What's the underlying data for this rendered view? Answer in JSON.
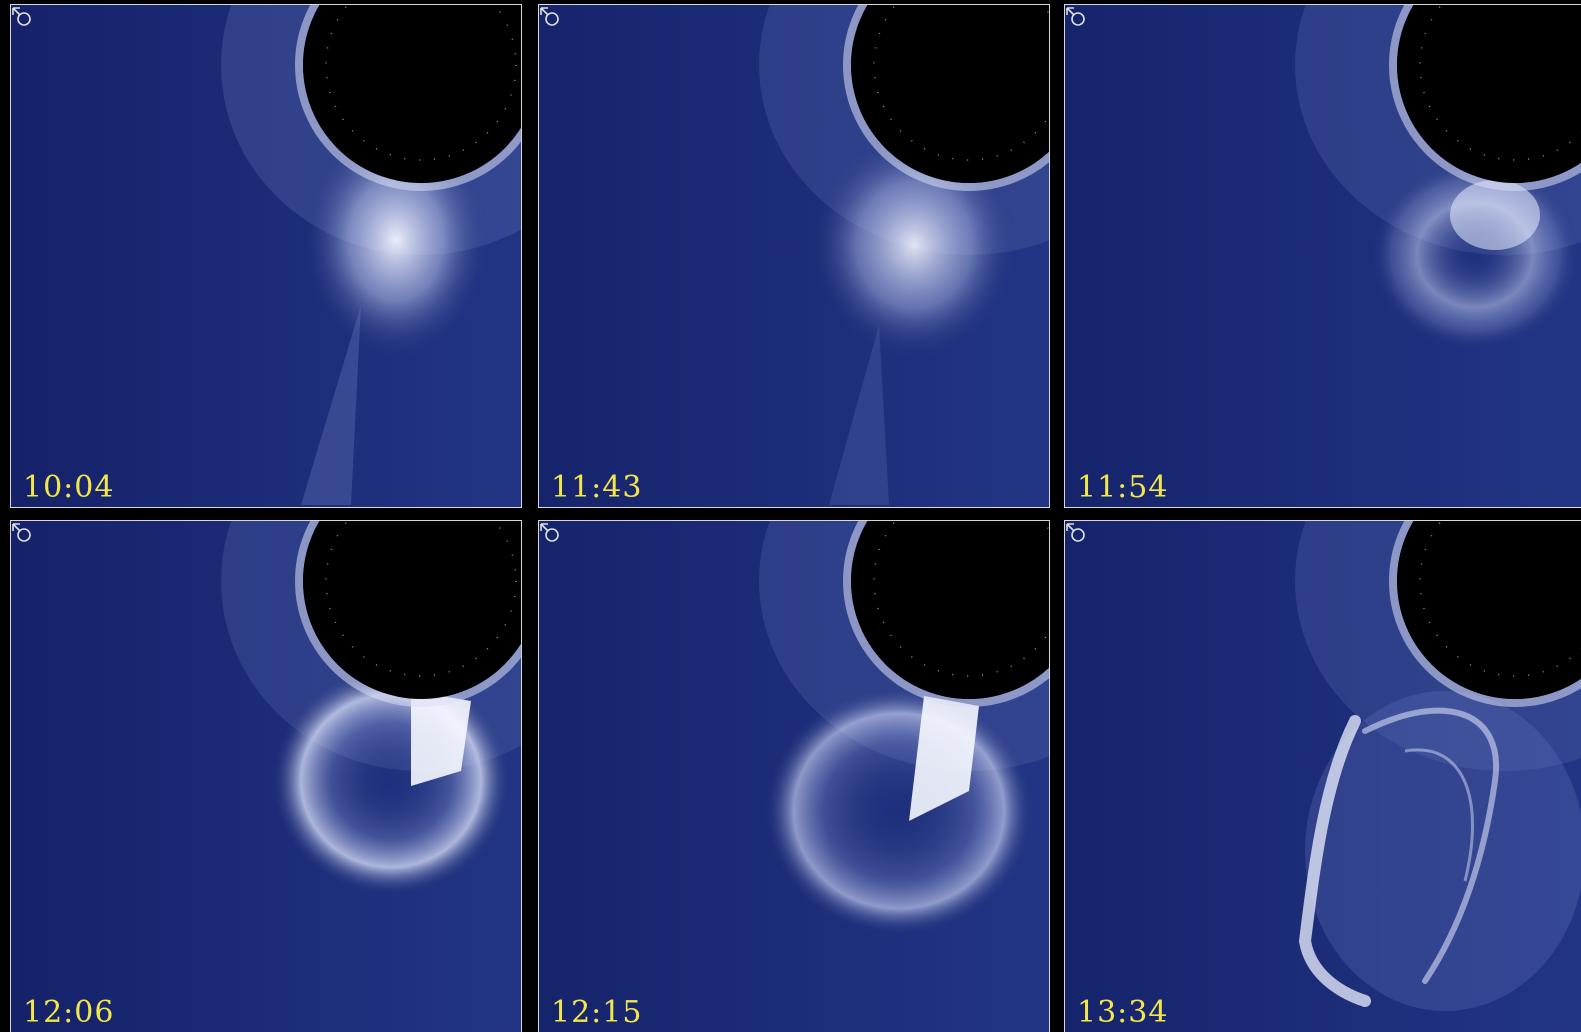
{
  "colors": {
    "background": "#1a2a73",
    "occulter": "#000000",
    "glow": "#eef2ff",
    "timestamp": "#f2e64a",
    "border": "#d8d8d8"
  },
  "icons": {
    "panel_symbol": "sun-orientation-icon"
  },
  "panels": [
    {
      "time": "10:04",
      "stage": "bright-front"
    },
    {
      "time": "11:43",
      "stage": "bright-front"
    },
    {
      "time": "11:54",
      "stage": "ring-forming"
    },
    {
      "time": "12:06",
      "stage": "ring"
    },
    {
      "time": "12:15",
      "stage": "ring-expanded"
    },
    {
      "time": "13:34",
      "stage": "filaments"
    }
  ]
}
